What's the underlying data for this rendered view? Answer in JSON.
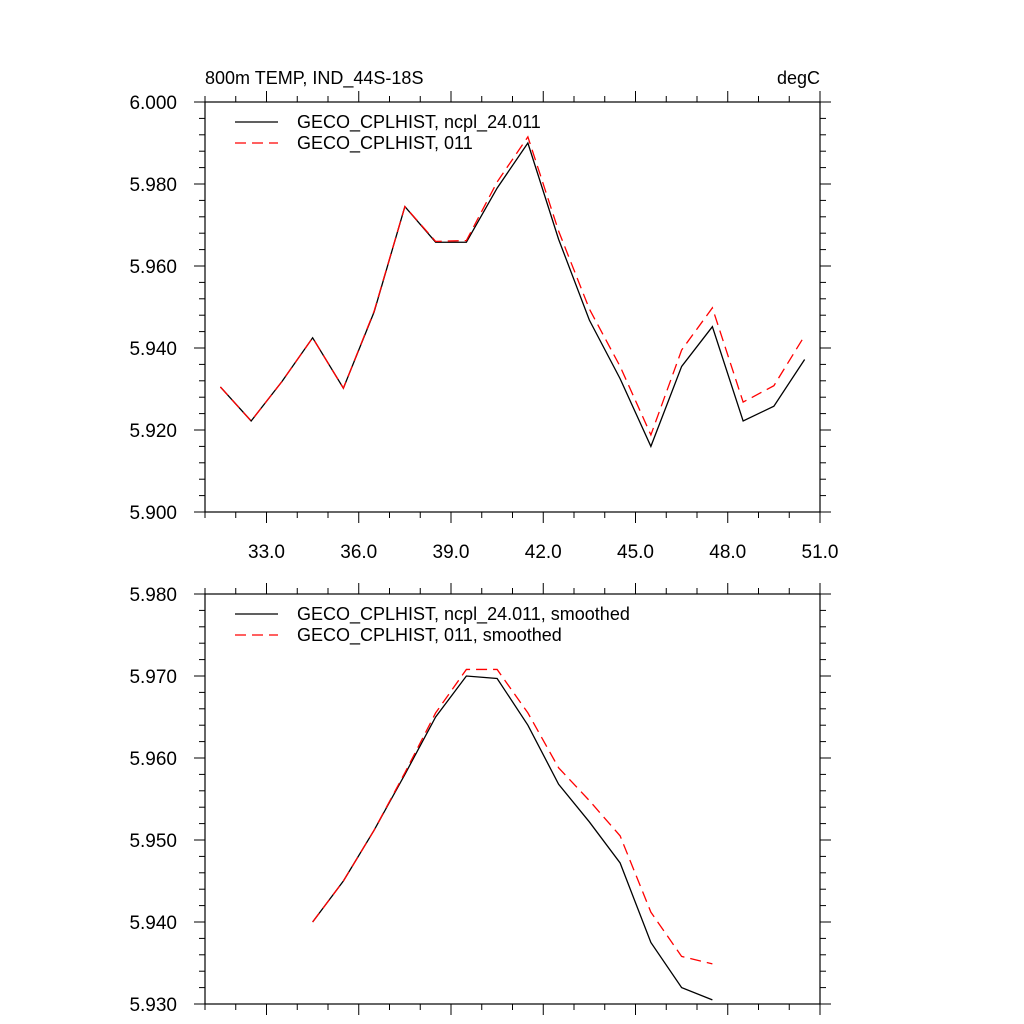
{
  "chart_data": [
    {
      "type": "line",
      "title": "800m TEMP, IND_44S-18S",
      "units": "degC",
      "xlabel": "",
      "ylabel": "",
      "xlim": [
        31.0,
        51.0
      ],
      "ylim": [
        5.9,
        6.0
      ],
      "x_ticks": [
        33.0,
        36.0,
        39.0,
        42.0,
        45.0,
        48.0,
        51.0
      ],
      "x_tick_labels": [
        "33.0",
        "36.0",
        "39.0",
        "42.0",
        "45.0",
        "48.0",
        "51.0"
      ],
      "y_ticks": [
        5.9,
        5.92,
        5.94,
        5.96,
        5.98,
        6.0
      ],
      "y_tick_labels": [
        "5.900",
        "5.920",
        "5.940",
        "5.960",
        "5.980",
        "6.000"
      ],
      "legend_position": "top-left",
      "x": [
        31.5,
        32.5,
        33.5,
        34.5,
        35.5,
        36.5,
        37.5,
        38.5,
        39.5,
        40.5,
        41.5,
        42.5,
        43.5,
        44.5,
        45.5,
        46.5,
        47.5,
        48.5,
        49.5,
        50.5
      ],
      "series": [
        {
          "name": "GECO_CPLHIST, ncpl_24.011",
          "color": "#000000",
          "dash": "solid",
          "values": [
            5.9305,
            5.9222,
            5.9318,
            5.9425,
            5.9302,
            5.9488,
            5.9745,
            5.9658,
            5.9658,
            5.979,
            5.99,
            5.9665,
            5.9468,
            5.9325,
            5.916,
            5.9355,
            5.9452,
            5.9222,
            5.9258,
            5.9372
          ]
        },
        {
          "name": "GECO_CPLHIST, 011",
          "color": "#ff0000",
          "dash": "dashed",
          "values": [
            5.9305,
            5.9222,
            5.9318,
            5.9425,
            5.9302,
            5.949,
            5.9745,
            5.966,
            5.9662,
            5.9805,
            5.9915,
            5.9685,
            5.9495,
            5.9355,
            5.9188,
            5.9395,
            5.9498,
            5.9268,
            5.9308,
            5.943
          ]
        }
      ]
    },
    {
      "type": "line",
      "title": "",
      "xlabel": "",
      "ylabel": "",
      "xlim": [
        31.0,
        51.0
      ],
      "ylim": [
        5.93,
        5.98
      ],
      "x_ticks": [
        33.0,
        36.0,
        39.0,
        42.0,
        45.0,
        48.0,
        51.0
      ],
      "y_ticks": [
        5.93,
        5.94,
        5.95,
        5.96,
        5.97,
        5.98
      ],
      "y_tick_labels": [
        "5.930",
        "5.940",
        "5.950",
        "5.960",
        "5.970",
        "5.980"
      ],
      "legend_position": "top-left",
      "x": [
        34.5,
        35.5,
        36.5,
        37.5,
        38.5,
        39.5,
        40.5,
        41.5,
        42.5,
        43.5,
        44.5,
        45.5,
        46.5,
        47.5
      ],
      "series": [
        {
          "name": "GECO_CPLHIST, ncpl_24.011, smoothed",
          "color": "#000000",
          "dash": "solid",
          "values": [
            5.94,
            5.945,
            5.9512,
            5.958,
            5.965,
            5.97,
            5.9697,
            5.964,
            5.9568,
            5.9522,
            5.9472,
            5.9375,
            5.932,
            5.9305
          ]
        },
        {
          "name": "GECO_CPLHIST, 011, smoothed",
          "color": "#ff0000",
          "dash": "dashed",
          "values": [
            5.94,
            5.945,
            5.9512,
            5.9582,
            5.9655,
            5.9708,
            5.9708,
            5.9655,
            5.9588,
            5.9548,
            5.9505,
            5.9412,
            5.9358,
            5.9349
          ]
        }
      ]
    }
  ]
}
